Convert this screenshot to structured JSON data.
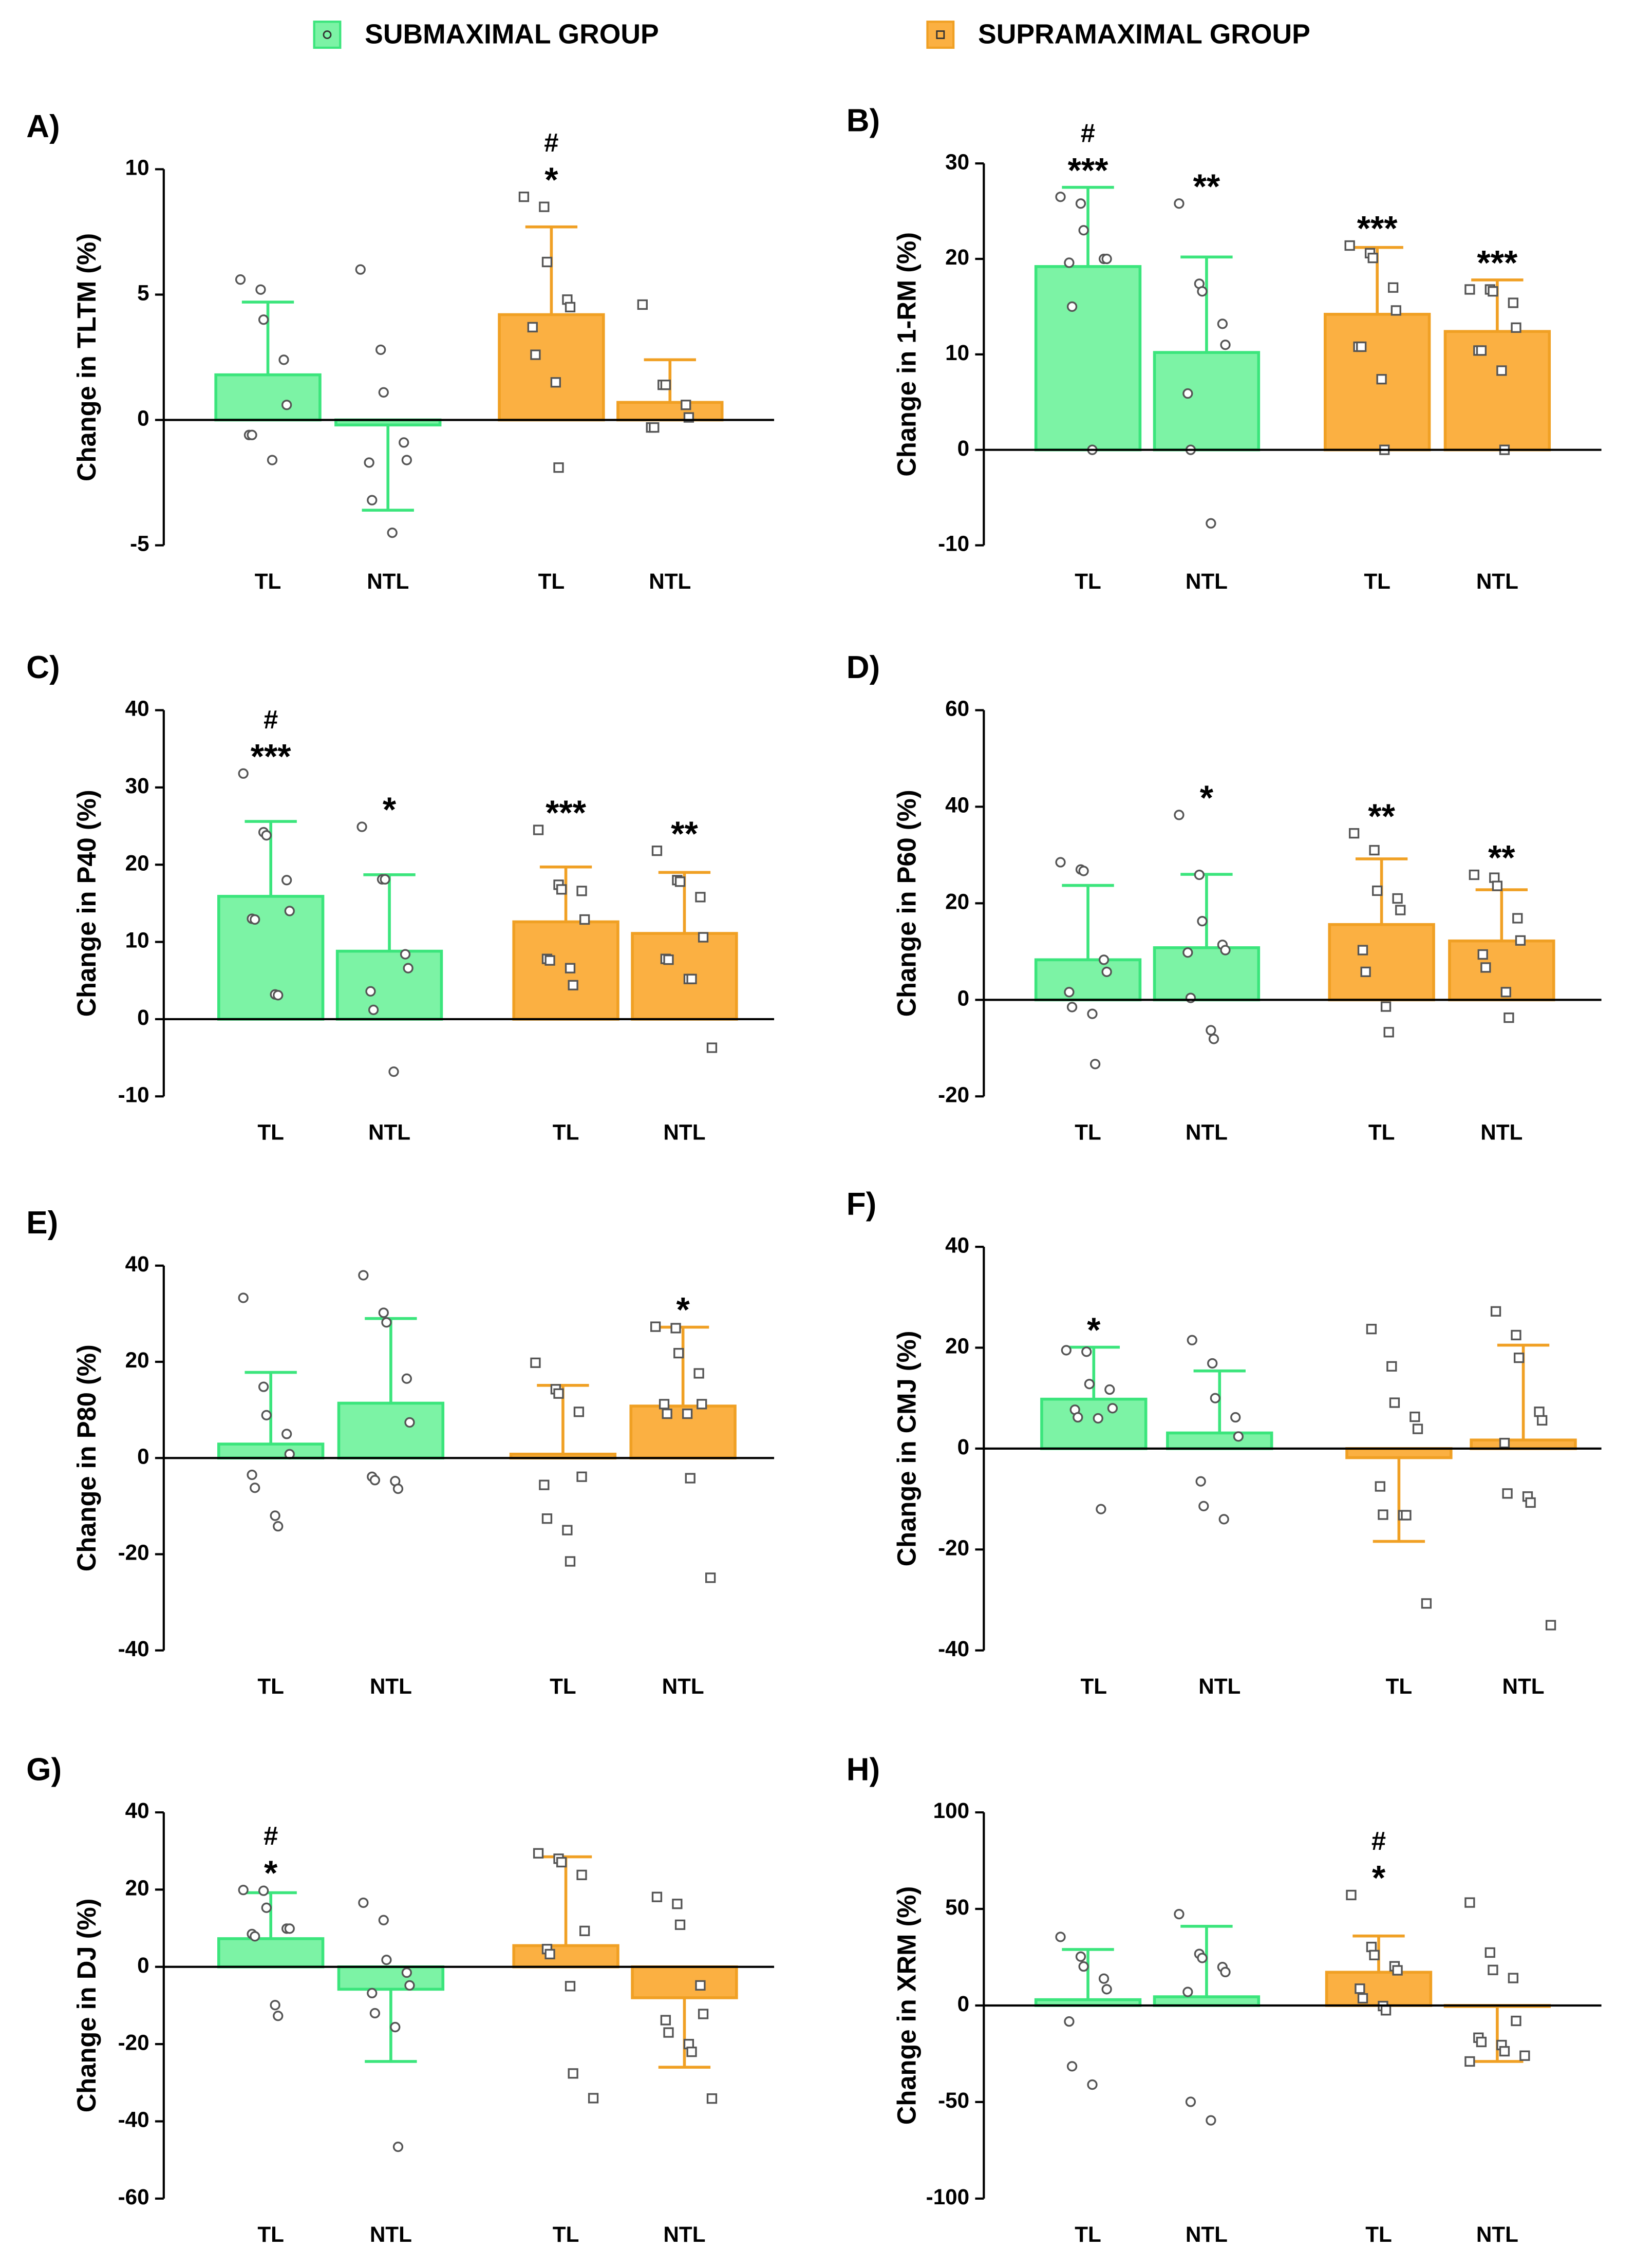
{
  "legend": [
    {
      "name": "SUBMAXIMAL GROUP",
      "color": "#7cf3a5",
      "stroke": "#3be57c",
      "marker": "circle"
    },
    {
      "name": "SUPRAMAXIMAL GROUP",
      "color": "#fbb042",
      "stroke": "#f0a024",
      "marker": "square"
    }
  ],
  "chart_data": [
    {
      "type": "bar",
      "label": "A)",
      "y_label": "Change in TLTM (%)",
      "categories": [
        "TL",
        "NTL",
        "TL",
        "NTL"
      ],
      "colors": [
        "#7cf3a5",
        "#7cf3a5",
        "#fbb042",
        "#fbb042"
      ],
      "strokes": [
        "#3be57c",
        "#3be57c",
        "#f0a024",
        "#f0a024"
      ],
      "markers": [
        "circle",
        "circle",
        "square",
        "square"
      ],
      "values": [
        1.8,
        -0.2,
        4.2,
        0.7
      ],
      "errors": [
        2.9,
        3.4,
        3.5,
        1.7
      ],
      "points": [
        [
          5.6,
          5.2,
          4.0,
          2.4,
          0.6,
          -0.6,
          -0.6,
          -1.6
        ],
        [
          6.0,
          2.8,
          1.1,
          -0.9,
          -1.6,
          -1.7,
          -3.2,
          -4.5
        ],
        [
          8.9,
          8.5,
          6.3,
          4.8,
          4.5,
          3.7,
          2.6,
          1.5,
          -1.9
        ],
        [
          4.6,
          1.4,
          1.4,
          0.6,
          0.1,
          -0.3,
          -0.3
        ]
      ],
      "hash": [
        null,
        null,
        "#",
        null
      ],
      "stars": [
        null,
        null,
        "*",
        null
      ],
      "ylim": [
        -5,
        10
      ],
      "yticks": [
        -5,
        0,
        5,
        10
      ]
    },
    {
      "type": "bar",
      "label": "B)",
      "y_label": "Change in 1-RM (%)",
      "categories": [
        "TL",
        "NTL",
        "TL",
        "NTL"
      ],
      "colors": [
        "#7cf3a5",
        "#7cf3a5",
        "#fbb042",
        "#fbb042"
      ],
      "strokes": [
        "#3be57c",
        "#3be57c",
        "#f0a024",
        "#f0a024"
      ],
      "markers": [
        "circle",
        "circle",
        "square",
        "square"
      ],
      "values": [
        19.2,
        10.2,
        14.2,
        12.4
      ],
      "errors": [
        8.3,
        10.0,
        7.0,
        5.4
      ],
      "points": [
        [
          26.5,
          25.8,
          23,
          20,
          20,
          19.6,
          15,
          0
        ],
        [
          25.8,
          17.4,
          16.6,
          13.2,
          11,
          5.9,
          0,
          -7.7
        ],
        [
          21.4,
          20.6,
          20.1,
          17,
          14.6,
          10.8,
          10.8,
          7.4,
          0
        ],
        [
          16.8,
          16.8,
          16.6,
          15.4,
          12.8,
          10.4,
          10.4,
          8.3,
          0
        ]
      ],
      "hash": [
        "#",
        null,
        null,
        null
      ],
      "stars": [
        "***",
        "**",
        "***",
        "***"
      ],
      "ylim": [
        -10,
        30
      ],
      "yticks": [
        -10,
        0,
        10,
        20,
        30
      ]
    },
    {
      "type": "bar",
      "label": "C)",
      "y_label": "Change in P40 (%)",
      "categories": [
        "TL",
        "NTL",
        "TL",
        "NTL"
      ],
      "colors": [
        "#7cf3a5",
        "#7cf3a5",
        "#fbb042",
        "#fbb042"
      ],
      "strokes": [
        "#3be57c",
        "#3be57c",
        "#f0a024",
        "#f0a024"
      ],
      "markers": [
        "circle",
        "circle",
        "square",
        "square"
      ],
      "values": [
        15.9,
        8.8,
        12.6,
        11.1
      ],
      "errors": [
        9.7,
        9.9,
        7.1,
        7.9
      ],
      "points": [
        [
          31.8,
          24.2,
          23.8,
          18,
          14,
          13,
          12.9,
          3.2,
          3.1
        ],
        [
          24.9,
          18.1,
          18.1,
          8.4,
          6.6,
          3.6,
          1.2,
          -6.8
        ],
        [
          24.5,
          17.4,
          16.8,
          16.6,
          12.9,
          7.8,
          7.6,
          6.6,
          4.4
        ],
        [
          21.8,
          18,
          17.8,
          15.8,
          10.6,
          7.8,
          7.7,
          5.2,
          5.2,
          -3.7
        ]
      ],
      "hash": [
        "#",
        null,
        null,
        null
      ],
      "stars": [
        "***",
        "*",
        "***",
        "**"
      ],
      "ylim": [
        -10,
        40
      ],
      "yticks": [
        -10,
        0,
        10,
        20,
        30,
        40
      ]
    },
    {
      "type": "bar",
      "label": "D)",
      "y_label": "Change in P60 (%)",
      "categories": [
        "TL",
        "NTL",
        "TL",
        "NTL"
      ],
      "colors": [
        "#7cf3a5",
        "#7cf3a5",
        "#fbb042",
        "#fbb042"
      ],
      "strokes": [
        "#3be57c",
        "#3be57c",
        "#f0a024",
        "#f0a024"
      ],
      "markers": [
        "circle",
        "circle",
        "square",
        "square"
      ],
      "values": [
        8.3,
        10.8,
        15.6,
        12.2
      ],
      "errors": [
        15.4,
        15.2,
        13.6,
        10.6
      ],
      "points": [
        [
          28.5,
          27,
          26.7,
          8.3,
          5.8,
          1.6,
          -1.5,
          -2.9,
          -13.3
        ],
        [
          38.3,
          25.9,
          16.3,
          11.4,
          10.3,
          9.8,
          0.4,
          -6.3,
          -8.1
        ],
        [
          34.5,
          31,
          22.6,
          21,
          18.6,
          10.3,
          5.8,
          -1.4,
          -6.7
        ],
        [
          25.9,
          25.3,
          23.6,
          16.9,
          12.3,
          9.4,
          6.7,
          1.6,
          -3.7
        ]
      ],
      "hash": [
        null,
        null,
        null,
        null
      ],
      "stars": [
        null,
        "*",
        "**",
        "**"
      ],
      "ylim": [
        -20,
        60
      ],
      "yticks": [
        -20,
        0,
        20,
        40,
        60
      ]
    },
    {
      "type": "bar",
      "label": "E)",
      "y_label": "Change in P80 (%)",
      "categories": [
        "TL",
        "NTL",
        "TL",
        "NTL"
      ],
      "colors": [
        "#7cf3a5",
        "#7cf3a5",
        "#fbb042",
        "#fbb042"
      ],
      "strokes": [
        "#3be57c",
        "#3be57c",
        "#f0a024",
        "#f0a024"
      ],
      "markers": [
        "circle",
        "circle",
        "square",
        "square"
      ],
      "values": [
        2.9,
        11.4,
        0.8,
        10.8
      ],
      "errors": [
        14.9,
        17.6,
        14.3,
        16.4
      ],
      "points": [
        [
          33.3,
          14.8,
          8.9,
          5,
          0.8,
          -3.5,
          -6.2,
          -12,
          -14.2
        ],
        [
          38,
          30.2,
          28.2,
          16.5,
          7.4,
          -3.9,
          -4.6,
          -4.8,
          -6.4
        ],
        [
          19.8,
          14.3,
          13.4,
          9.6,
          -3.9,
          -5.6,
          -12.6,
          -15,
          -21.5
        ],
        [
          27.3,
          27,
          21.8,
          17.6,
          11.2,
          11.2,
          9.2,
          9.2,
          -4.2,
          -24.9
        ]
      ],
      "hash": [
        null,
        null,
        null,
        null
      ],
      "stars": [
        null,
        null,
        null,
        "*"
      ],
      "ylim": [
        -40,
        40
      ],
      "yticks": [
        -40,
        -20,
        0,
        20,
        40
      ]
    },
    {
      "type": "bar",
      "label": "F)",
      "y_label": "Change in CMJ (%)",
      "categories": [
        "TL",
        "NTL",
        "TL",
        "NTL"
      ],
      "colors": [
        "#7cf3a5",
        "#7cf3a5",
        "#fbb042",
        "#fbb042"
      ],
      "strokes": [
        "#3be57c",
        "#3be57c",
        "#f0a024",
        "#f0a024"
      ],
      "markers": [
        "circle",
        "circle",
        "square",
        "square"
      ],
      "values": [
        9.8,
        3.1,
        -1.8,
        1.7
      ],
      "errors": [
        10.3,
        12.3,
        16.6,
        18.8
      ],
      "points": [
        [
          19.5,
          19.2,
          12.8,
          11.7,
          8,
          7.7,
          6.2,
          6,
          -12
        ],
        [
          21.5,
          16.9,
          10,
          6.2,
          2.4,
          -6.5,
          -11.4,
          -14
        ],
        [
          23.7,
          16.3,
          9.1,
          6.3,
          3.9,
          -7.5,
          -13.1,
          -13.2,
          -13.2,
          -30.7
        ],
        [
          27.2,
          22.5,
          18,
          7.3,
          5.6,
          1.1,
          -8.9,
          -9.5,
          -10.7,
          -35
        ]
      ],
      "hash": [
        null,
        null,
        null,
        null
      ],
      "stars": [
        "*",
        null,
        null,
        null
      ],
      "ylim": [
        -40,
        40
      ],
      "yticks": [
        -40,
        -20,
        0,
        20,
        40
      ]
    },
    {
      "type": "bar",
      "label": "G)",
      "y_label": "Change in DJ (%)",
      "categories": [
        "TL",
        "NTL",
        "TL",
        "NTL"
      ],
      "colors": [
        "#7cf3a5",
        "#7cf3a5",
        "#fbb042",
        "#fbb042"
      ],
      "strokes": [
        "#3be57c",
        "#3be57c",
        "#f0a024",
        "#f0a024"
      ],
      "markers": [
        "circle",
        "circle",
        "square",
        "square"
      ],
      "values": [
        7.3,
        -5.8,
        5.5,
        -8
      ],
      "errors": [
        11.9,
        18.7,
        23,
        18
      ],
      "points": [
        [
          19.9,
          19.7,
          15.3,
          9.9,
          9.9,
          8.5,
          7.9,
          -9.9,
          -12.7
        ],
        [
          16.6,
          12.1,
          1.8,
          -1.5,
          -4.8,
          -6.8,
          -12,
          -15.6,
          -46.6
        ],
        [
          29.4,
          28,
          27.1,
          23.8,
          9.3,
          4.6,
          3.3,
          -5,
          -27.6,
          -34
        ],
        [
          18.1,
          16.3,
          10.9,
          -4.8,
          -12.2,
          -13.8,
          -17,
          -20,
          -22,
          -34.1
        ]
      ],
      "hash": [
        "#",
        null,
        null,
        null
      ],
      "stars": [
        "*",
        null,
        null,
        null
      ],
      "ylim": [
        -60,
        40
      ],
      "yticks": [
        -60,
        -40,
        -20,
        0,
        20,
        40
      ]
    },
    {
      "type": "bar",
      "label": "H)",
      "y_label": "Change in XRM (%)",
      "categories": [
        "TL",
        "NTL",
        "TL",
        "NTL"
      ],
      "colors": [
        "#7cf3a5",
        "#7cf3a5",
        "#fbb042",
        "#fbb042"
      ],
      "strokes": [
        "#3be57c",
        "#3be57c",
        "#f0a024",
        "#f0a024"
      ],
      "markers": [
        "circle",
        "circle",
        "square",
        "square"
      ],
      "values": [
        3,
        4.5,
        17.2,
        -0.5
      ],
      "errors": [
        26,
        36.5,
        18.8,
        28.5
      ],
      "points": [
        [
          35.5,
          25.3,
          20.2,
          13.9,
          8.4,
          -8.3,
          -31.5,
          -41
        ],
        [
          47.3,
          26.7,
          24.6,
          19.9,
          17.3,
          7,
          -49.9,
          -59.5
        ],
        [
          57.2,
          30.3,
          26.1,
          20.3,
          18.2,
          8.7,
          3.7,
          -0.3,
          -2.5
        ],
        [
          53.3,
          27.4,
          18.4,
          14.2,
          -8,
          -16.7,
          -18.9,
          -20.5,
          -23.7,
          -26,
          -29
        ]
      ],
      "hash": [
        null,
        null,
        "#",
        null
      ],
      "stars": [
        null,
        null,
        "*",
        null
      ],
      "ylim": [
        -100,
        100
      ],
      "yticks": [
        -100,
        -50,
        0,
        50,
        100
      ]
    }
  ]
}
